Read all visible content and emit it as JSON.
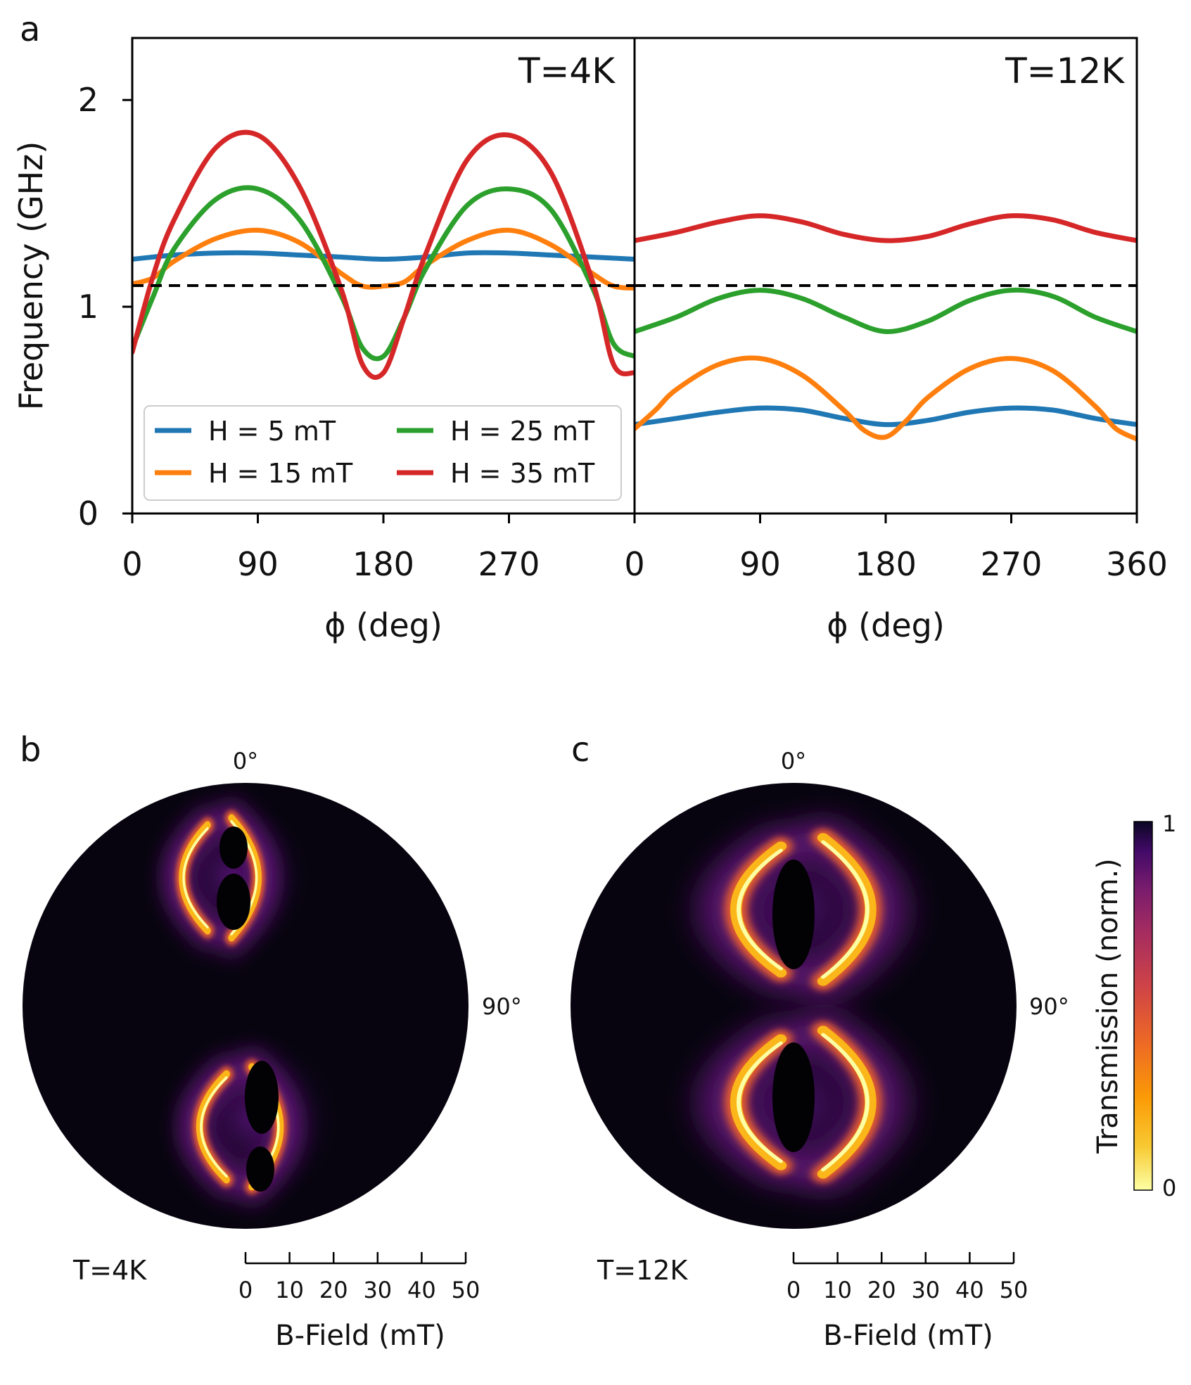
{
  "panel_labels": {
    "a": "a",
    "b": "b",
    "c": "c"
  },
  "chart_data": [
    {
      "type": "line",
      "panel": "a",
      "ylabel": "Frequency (GHz)",
      "xlabel": "ϕ (deg)",
      "ylim": [
        0,
        2.3
      ],
      "yticks": [
        "0",
        "1",
        "2"
      ],
      "grid": false,
      "legend_position": "lower-left",
      "reference_line": {
        "y": 1.1,
        "style": "dashed",
        "color": "#000000"
      },
      "subplots": [
        {
          "title": "T=4K",
          "xlim": [
            0,
            360
          ],
          "xticks": [
            "0",
            "90",
            "180",
            "270"
          ],
          "series": [
            {
              "name": "H = 5 mT",
              "color": "#1f77b4",
              "x": [
                0,
                30,
                60,
                90,
                120,
                150,
                180,
                210,
                240,
                270,
                300,
                330,
                360
              ],
              "values": [
                1.23,
                1.25,
                1.26,
                1.26,
                1.25,
                1.24,
                1.23,
                1.24,
                1.26,
                1.26,
                1.25,
                1.24,
                1.23
              ]
            },
            {
              "name": "H = 15 mT",
              "color": "#ff7f0e",
              "x": [
                0,
                15,
                30,
                60,
                90,
                120,
                150,
                165,
                180,
                195,
                210,
                240,
                270,
                300,
                330,
                345,
                360
              ],
              "values": [
                1.11,
                1.14,
                1.22,
                1.33,
                1.37,
                1.31,
                1.16,
                1.1,
                1.1,
                1.12,
                1.2,
                1.32,
                1.37,
                1.3,
                1.16,
                1.1,
                1.09
              ]
            },
            {
              "name": "H = 25 mT",
              "color": "#2ca02c",
              "x": [
                0,
                15,
                30,
                60,
                90,
                120,
                150,
                165,
                180,
                195,
                210,
                240,
                270,
                300,
                330,
                345,
                360
              ],
              "values": [
                0.8,
                1.05,
                1.28,
                1.52,
                1.57,
                1.42,
                1.05,
                0.8,
                0.76,
                0.95,
                1.18,
                1.49,
                1.57,
                1.47,
                1.09,
                0.82,
                0.76
              ]
            },
            {
              "name": "H = 35 mT",
              "color": "#d62728",
              "x": [
                0,
                15,
                30,
                60,
                90,
                120,
                150,
                165,
                180,
                195,
                210,
                240,
                270,
                300,
                330,
                345,
                360
              ],
              "values": [
                0.78,
                1.15,
                1.42,
                1.77,
                1.83,
                1.58,
                1.08,
                0.72,
                0.68,
                0.95,
                1.25,
                1.71,
                1.83,
                1.65,
                1.12,
                0.72,
                0.68
              ]
            }
          ]
        },
        {
          "title": "T=12K",
          "xlim": [
            0,
            360
          ],
          "xticks": [
            "0",
            "90",
            "180",
            "270",
            "360"
          ],
          "series": [
            {
              "name": "H = 5 mT",
              "color": "#1f77b4",
              "x": [
                0,
                30,
                60,
                90,
                120,
                150,
                180,
                210,
                240,
                270,
                300,
                330,
                360
              ],
              "values": [
                0.43,
                0.46,
                0.49,
                0.51,
                0.5,
                0.46,
                0.43,
                0.45,
                0.49,
                0.51,
                0.5,
                0.46,
                0.43
              ]
            },
            {
              "name": "H = 15 mT",
              "color": "#ff7f0e",
              "x": [
                0,
                15,
                30,
                60,
                90,
                120,
                150,
                165,
                180,
                195,
                210,
                240,
                270,
                300,
                330,
                345,
                360
              ],
              "values": [
                0.41,
                0.5,
                0.6,
                0.72,
                0.75,
                0.67,
                0.5,
                0.4,
                0.37,
                0.45,
                0.56,
                0.7,
                0.75,
                0.69,
                0.52,
                0.41,
                0.36
              ]
            },
            {
              "name": "H = 25 mT",
              "color": "#2ca02c",
              "x": [
                0,
                30,
                60,
                90,
                120,
                150,
                180,
                210,
                240,
                270,
                300,
                330,
                360
              ],
              "values": [
                0.88,
                0.95,
                1.04,
                1.08,
                1.04,
                0.95,
                0.88,
                0.93,
                1.03,
                1.08,
                1.05,
                0.95,
                0.88
              ]
            },
            {
              "name": "H = 35 mT",
              "color": "#d62728",
              "x": [
                0,
                30,
                60,
                90,
                120,
                150,
                180,
                210,
                240,
                270,
                300,
                330,
                360
              ],
              "values": [
                1.32,
                1.36,
                1.41,
                1.44,
                1.41,
                1.35,
                1.32,
                1.34,
                1.4,
                1.44,
                1.42,
                1.36,
                1.32
              ]
            }
          ]
        }
      ]
    },
    {
      "type": "heatmap",
      "panel": "b",
      "projection": "polar",
      "temperature_label": "T=4K",
      "angle_labels": [
        "0°",
        "90°"
      ],
      "radial_axis": {
        "label": "B-Field (mT)",
        "range": [
          0,
          50
        ],
        "ticks": [
          "0",
          "10",
          "20",
          "30",
          "40",
          "50"
        ]
      }
    },
    {
      "type": "heatmap",
      "panel": "c",
      "projection": "polar",
      "temperature_label": "T=12K",
      "angle_labels": [
        "0°",
        "90°"
      ],
      "radial_axis": {
        "label": "B-Field (mT)",
        "range": [
          0,
          50
        ],
        "ticks": [
          "0",
          "10",
          "20",
          "30",
          "40",
          "50"
        ]
      }
    }
  ],
  "colorbar": {
    "label": "Transmission (norm.)",
    "min_label": "0",
    "max_label": "1",
    "colormap": "inferno",
    "range": [
      0,
      1
    ]
  }
}
